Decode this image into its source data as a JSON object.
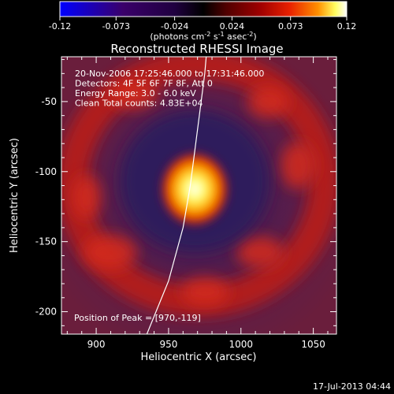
{
  "chart_data": {
    "type": "heatmap",
    "title": "Reconstructed RHESSI Image",
    "xlabel": "Heliocentric X (arcsec)",
    "ylabel": "Heliocentric Y (arcsec)",
    "xlim": [
      876,
      1066
    ],
    "ylim": [
      -216,
      -18
    ],
    "x_ticks": [
      900,
      950,
      1000,
      1050
    ],
    "y_ticks": [
      -50,
      -100,
      -150,
      -200
    ],
    "colorbar": {
      "range": [
        -0.12,
        0.12
      ],
      "ticks": [
        "-0.12",
        "-0.073",
        "-0.024",
        "0.024",
        "0.073",
        "0.12"
      ],
      "tick_values": [
        -0.12,
        -0.073,
        -0.024,
        0.024,
        0.073,
        0.12
      ],
      "unit_label": "(photons cm",
      "unit_exp1": "-2",
      "unit_mid": " s",
      "unit_exp2": "-1",
      "unit_mid2": " asec",
      "unit_exp3": "-2",
      "unit_end": ")",
      "colors": [
        "#0000ff",
        "#3a006a",
        "#200040",
        "#000000",
        "#500000",
        "#a00000",
        "#e82000",
        "#ff9000",
        "#ffff60",
        "#ffffff"
      ]
    },
    "annotations": [
      "20-Nov-2006 17:25:46.000 to 17:31:46.000",
      "Detectors: 4F 5F 6F 7F 8F, Att 0",
      "Energy Range: 3.0 - 6.0 keV",
      "Clean     Total counts: 4.83E+04"
    ],
    "peak_label": "Position of Peak = [970,-119]",
    "peak": [
      970,
      -119
    ],
    "limb_curve": [
      [
        935,
        -216
      ],
      [
        950,
        -178
      ],
      [
        960,
        -140
      ],
      [
        965,
        -110
      ],
      [
        970,
        -70
      ],
      [
        975,
        -30
      ],
      [
        976,
        -18
      ]
    ]
  },
  "footer": {
    "timestamp": "17-Jul-2013 04:44"
  }
}
